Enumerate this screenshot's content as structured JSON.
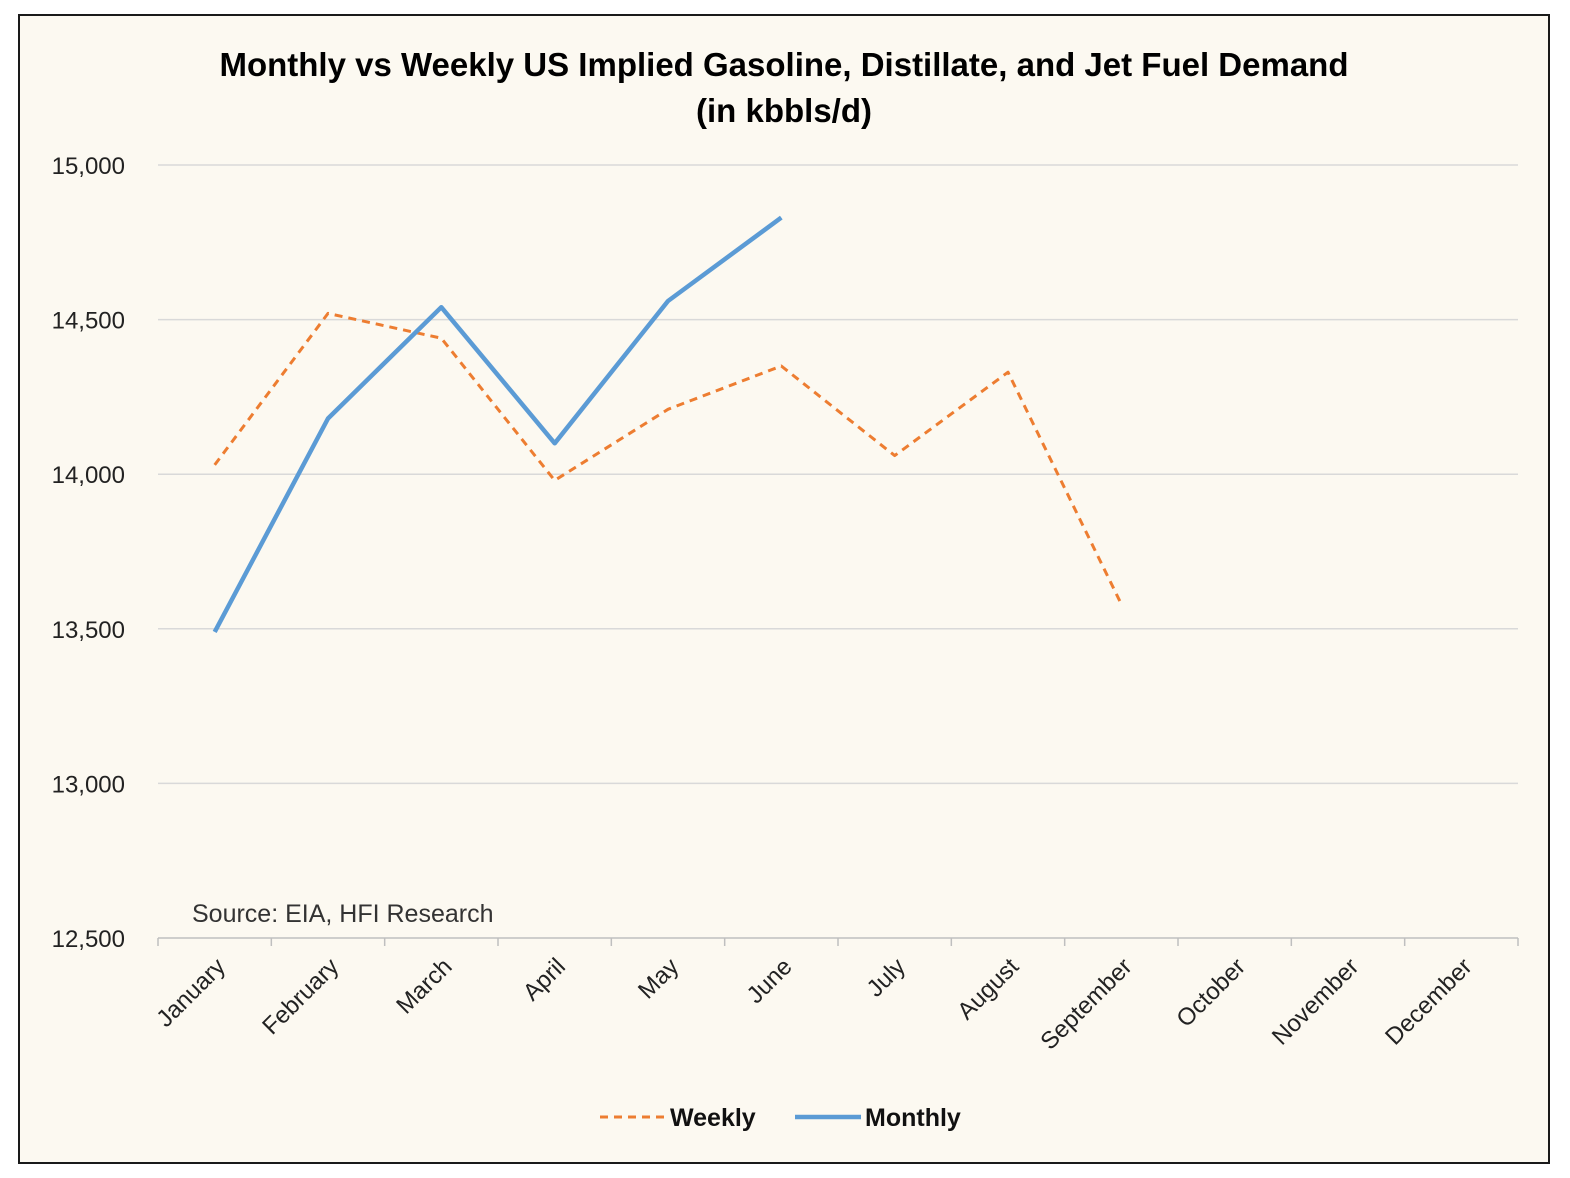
{
  "chart_data": {
    "type": "line",
    "title": "Monthly vs Weekly US Implied Gasoline, Distillate, and Jet Fuel Demand",
    "subtitle": "(in kbbls/d)",
    "categories": [
      "January",
      "February",
      "March",
      "April",
      "May",
      "June",
      "July",
      "August",
      "September",
      "October",
      "November",
      "December"
    ],
    "ylim": [
      12500,
      15000
    ],
    "yticks": [
      "15,000",
      "14,500",
      "14,000",
      "13,500",
      "13,000",
      "12,500"
    ],
    "ytick_values": [
      15000,
      14500,
      14000,
      13500,
      13000,
      12500
    ],
    "grid": true,
    "series": [
      {
        "name": "Weekly",
        "color": "#ed7d31",
        "style": "dashed",
        "values": [
          14030,
          14520,
          14440,
          13980,
          14210,
          14350,
          14060,
          14330,
          13580,
          null,
          null,
          null
        ]
      },
      {
        "name": "Monthly",
        "color": "#5b9bd5",
        "style": "solid",
        "values": [
          13490,
          14180,
          14540,
          14100,
          14560,
          14830,
          null,
          null,
          null,
          null,
          null,
          null
        ]
      }
    ],
    "annotation": "Source: EIA, HFI Research",
    "legend_position": "bottom"
  }
}
